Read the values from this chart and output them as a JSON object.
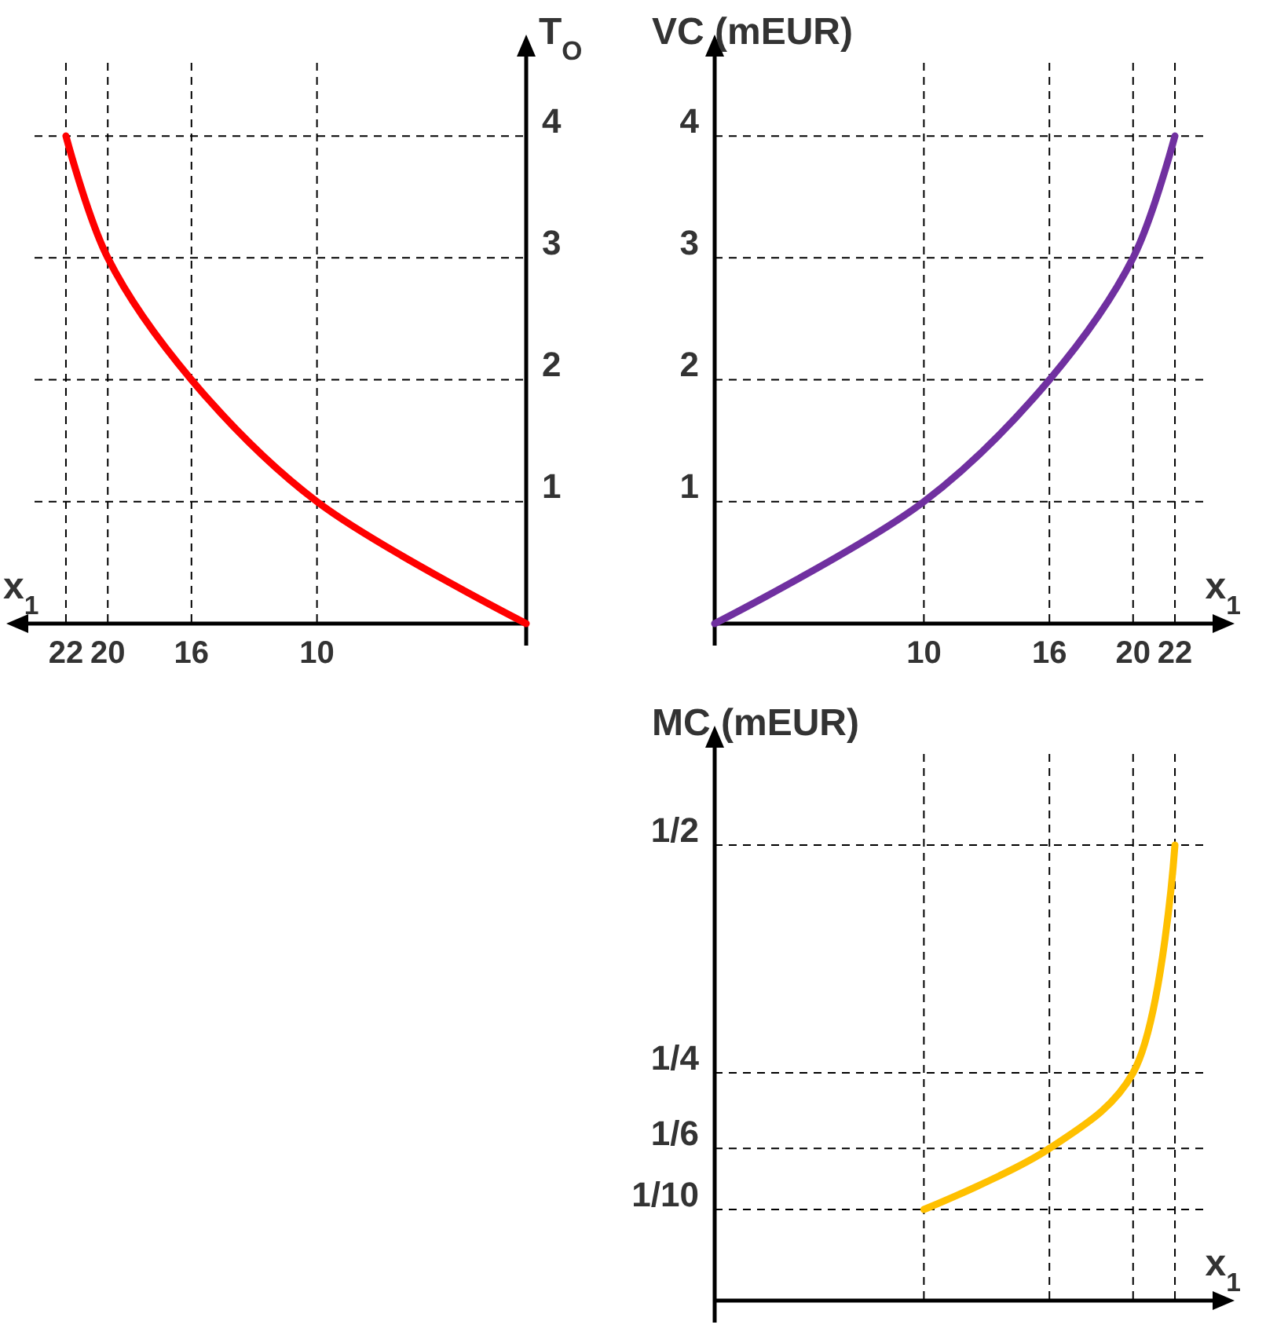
{
  "chart_data": [
    {
      "type": "line",
      "xlabel": "x$_{1}$",
      "ylabel": "T$_{O}$",
      "x": [
        0,
        10,
        16,
        20,
        22
      ],
      "xlim": [
        23.5,
        0
      ],
      "ylim": [
        0,
        4.6
      ],
      "grid": true,
      "xticks": [
        10,
        16,
        20,
        22
      ],
      "yticks": [
        1,
        2,
        3,
        4
      ],
      "series": [
        {
          "color": "#ff0000",
          "values": [
            0,
            1,
            2,
            3,
            4
          ]
        }
      ]
    },
    {
      "type": "line",
      "xlabel": "x$_{1}$",
      "ylabel": "VC (mEUR)",
      "x": [
        0,
        10,
        16,
        20,
        22
      ],
      "xlim": [
        0,
        23.5
      ],
      "ylim": [
        0,
        4.6
      ],
      "grid": true,
      "xticks": [
        10,
        16,
        20,
        22
      ],
      "yticks": [
        1,
        2,
        3,
        4
      ],
      "series": [
        {
          "color": "#7030a0",
          "values": [
            0,
            1,
            2,
            3,
            4
          ]
        }
      ]
    },
    {
      "type": "line",
      "xlabel": "x$_{1}$",
      "ylabel": "MC (mEUR)",
      "x": [
        10,
        16,
        20,
        22
      ],
      "xlim": [
        0,
        23.5
      ],
      "ylim": [
        0,
        0.6
      ],
      "grid": true,
      "tick_labels": "y",
      "xticks": [
        {
          "value": 10,
          "label": null
        },
        {
          "value": 16,
          "label": null
        },
        {
          "value": 20,
          "label": null
        },
        {
          "value": 22,
          "label": null
        }
      ],
      "yticks": [
        {
          "value": 0.1,
          "label": "1/10"
        },
        {
          "value": 0.167,
          "label": "1/6"
        },
        {
          "value": 0.25,
          "label": "1/4"
        },
        {
          "value": 0.5,
          "label": "1/2"
        }
      ],
      "series": [
        {
          "color": "#ffc000",
          "values": [
            0.1,
            0.167,
            0.25,
            0.5
          ]
        }
      ]
    }
  ]
}
